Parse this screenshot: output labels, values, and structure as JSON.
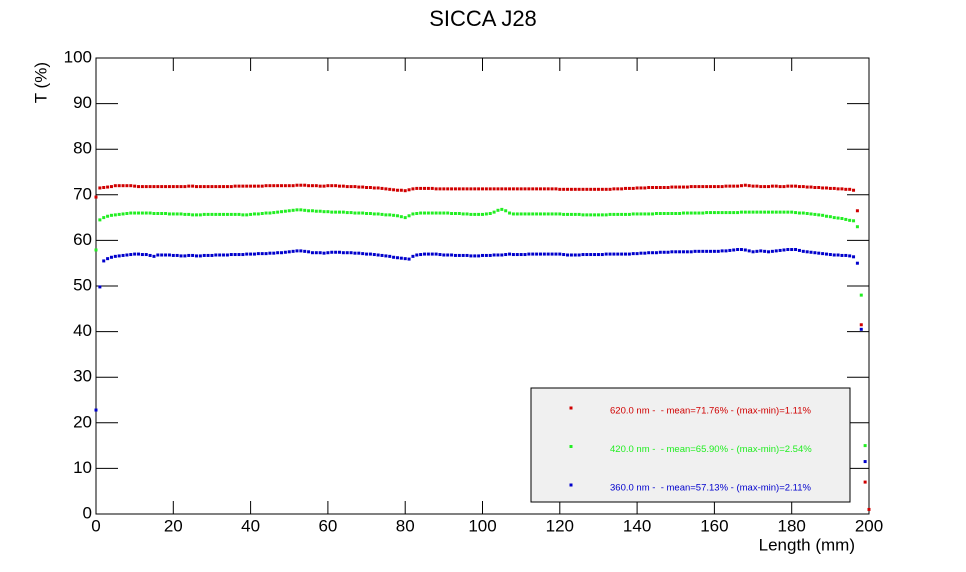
{
  "chart_data": {
    "type": "scatter",
    "title": "SICCA J28",
    "x_label": "Length (mm)",
    "y_label": "T (%)",
    "xlim": [
      0,
      200
    ],
    "xticks": [
      0,
      20,
      40,
      60,
      80,
      100,
      120,
      140,
      160,
      180,
      200
    ],
    "ylim": [
      0,
      100
    ],
    "yticks": [
      0,
      10,
      20,
      30,
      40,
      50,
      60,
      70,
      80,
      90,
      100
    ],
    "legend": "bottom-right",
    "x": [
      0,
      1,
      2,
      3,
      4,
      5,
      6,
      7,
      8,
      9,
      10,
      11,
      12,
      13,
      14,
      15,
      16,
      17,
      18,
      19,
      20,
      21,
      22,
      23,
      24,
      25,
      26,
      27,
      28,
      29,
      30,
      31,
      32,
      33,
      34,
      35,
      36,
      37,
      38,
      39,
      40,
      41,
      42,
      43,
      44,
      45,
      46,
      47,
      48,
      49,
      50,
      51,
      52,
      53,
      54,
      55,
      56,
      57,
      58,
      59,
      60,
      61,
      62,
      63,
      64,
      65,
      66,
      67,
      68,
      69,
      70,
      71,
      72,
      73,
      74,
      75,
      76,
      77,
      78,
      79,
      80,
      81,
      82,
      83,
      84,
      85,
      86,
      87,
      88,
      89,
      90,
      91,
      92,
      93,
      94,
      95,
      96,
      97,
      98,
      99,
      100,
      101,
      102,
      103,
      104,
      105,
      106,
      107,
      108,
      109,
      110,
      111,
      112,
      113,
      114,
      115,
      116,
      117,
      118,
      119,
      120,
      121,
      122,
      123,
      124,
      125,
      126,
      127,
      128,
      129,
      130,
      131,
      132,
      133,
      134,
      135,
      136,
      137,
      138,
      139,
      140,
      141,
      142,
      143,
      144,
      145,
      146,
      147,
      148,
      149,
      150,
      151,
      152,
      153,
      154,
      155,
      156,
      157,
      158,
      159,
      160,
      161,
      162,
      163,
      164,
      165,
      166,
      167,
      168,
      169,
      170,
      171,
      172,
      173,
      174,
      175,
      176,
      177,
      178,
      179,
      180,
      181,
      182,
      183,
      184,
      185,
      186,
      187,
      188,
      189,
      190,
      191,
      192,
      193,
      194,
      195,
      196,
      197,
      198,
      199,
      200
    ],
    "series": [
      {
        "name": "620.0 nm -  - mean=71.76% - (max-min)=1.11%",
        "color": "#d00000",
        "values": [
          69.5,
          71.5,
          71.6,
          71.7,
          71.8,
          72,
          72,
          72,
          72,
          72,
          71.9,
          71.8,
          71.8,
          71.8,
          71.8,
          71.8,
          71.8,
          71.8,
          71.8,
          71.8,
          71.8,
          71.8,
          71.8,
          71.8,
          71.9,
          71.9,
          71.8,
          71.8,
          71.8,
          71.8,
          71.8,
          71.8,
          71.8,
          71.8,
          71.8,
          71.8,
          71.9,
          71.9,
          71.9,
          71.9,
          71.9,
          71.9,
          71.9,
          71.9,
          72,
          72,
          72,
          72,
          72,
          72,
          72,
          72,
          72.1,
          72.1,
          72.1,
          72,
          72,
          72,
          71.9,
          71.9,
          72,
          72,
          72,
          71.9,
          71.9,
          71.8,
          71.8,
          71.8,
          71.7,
          71.7,
          71.6,
          71.6,
          71.5,
          71.5,
          71.4,
          71.3,
          71.2,
          71.1,
          71,
          71,
          70.9,
          71.1,
          71.3,
          71.4,
          71.4,
          71.4,
          71.4,
          71.4,
          71.3,
          71.3,
          71.3,
          71.3,
          71.3,
          71.3,
          71.3,
          71.3,
          71.3,
          71.3,
          71.3,
          71.3,
          71.3,
          71.3,
          71.3,
          71.3,
          71.3,
          71.3,
          71.3,
          71.3,
          71.3,
          71.3,
          71.3,
          71.3,
          71.3,
          71.3,
          71.3,
          71.3,
          71.3,
          71.3,
          71.3,
          71.3,
          71.2,
          71.2,
          71.2,
          71.2,
          71.2,
          71.2,
          71.2,
          71.2,
          71.2,
          71.2,
          71.2,
          71.2,
          71.2,
          71.2,
          71.3,
          71.3,
          71.3,
          71.4,
          71.4,
          71.4,
          71.5,
          71.5,
          71.5,
          71.6,
          71.6,
          71.6,
          71.6,
          71.6,
          71.6,
          71.7,
          71.7,
          71.7,
          71.7,
          71.7,
          71.8,
          71.8,
          71.8,
          71.8,
          71.8,
          71.8,
          71.8,
          71.8,
          71.8,
          71.9,
          71.9,
          71.9,
          71.9,
          72,
          72.1,
          72,
          71.9,
          71.9,
          71.8,
          71.8,
          71.8,
          71.9,
          71.9,
          71.8,
          71.8,
          71.9,
          71.9,
          71.9,
          71.8,
          71.8,
          71.7,
          71.7,
          71.6,
          71.6,
          71.5,
          71.5,
          71.4,
          71.4,
          71.3,
          71.3,
          71.2,
          71.2,
          71,
          66.5,
          41.5,
          7,
          1
        ]
      },
      {
        "name": "420.0 nm -  - mean=65.90% - (max-min)=2.54%",
        "color": "#22ee22",
        "values": [
          57.9,
          64.5,
          65,
          65.3,
          65.5,
          65.6,
          65.7,
          65.8,
          65.9,
          66,
          66,
          66,
          66,
          66,
          66,
          65.9,
          65.9,
          65.9,
          65.9,
          65.8,
          65.8,
          65.8,
          65.8,
          65.7,
          65.7,
          65.6,
          65.6,
          65.6,
          65.7,
          65.7,
          65.7,
          65.7,
          65.7,
          65.7,
          65.7,
          65.7,
          65.7,
          65.7,
          65.6,
          65.6,
          65.7,
          65.8,
          65.8,
          65.9,
          66,
          66,
          66.1,
          66.2,
          66.3,
          66.4,
          66.5,
          66.6,
          66.7,
          66.7,
          66.6,
          66.5,
          66.5,
          66.4,
          66.4,
          66.3,
          66.3,
          66.2,
          66.2,
          66.2,
          66.2,
          66.1,
          66.1,
          66,
          66,
          66,
          65.9,
          65.9,
          65.8,
          65.8,
          65.7,
          65.6,
          65.6,
          65.5,
          65.4,
          65.2,
          65,
          65.4,
          65.8,
          65.9,
          66,
          66,
          66,
          66,
          66,
          66,
          66,
          66,
          65.9,
          65.9,
          65.9,
          65.8,
          65.8,
          65.7,
          65.7,
          65.7,
          65.7,
          65.8,
          65.9,
          66.2,
          66.6,
          66.8,
          66.5,
          66,
          65.8,
          65.8,
          65.8,
          65.8,
          65.8,
          65.8,
          65.8,
          65.8,
          65.8,
          65.8,
          65.8,
          65.8,
          65.8,
          65.7,
          65.7,
          65.7,
          65.7,
          65.7,
          65.6,
          65.6,
          65.6,
          65.6,
          65.6,
          65.6,
          65.6,
          65.7,
          65.7,
          65.7,
          65.7,
          65.7,
          65.7,
          65.8,
          65.8,
          65.8,
          65.8,
          65.8,
          65.8,
          65.9,
          65.9,
          65.9,
          65.9,
          65.9,
          65.9,
          65.9,
          66,
          66,
          66,
          66,
          66,
          66,
          66.1,
          66.1,
          66.1,
          66.1,
          66.1,
          66.1,
          66.1,
          66.1,
          66.1,
          66.2,
          66.2,
          66.2,
          66.2,
          66.2,
          66.2,
          66.2,
          66.2,
          66.2,
          66.2,
          66.2,
          66.2,
          66.2,
          66.2,
          66.1,
          66,
          66,
          65.9,
          65.8,
          65.7,
          65.6,
          65.5,
          65.3,
          65.2,
          65,
          64.9,
          64.8,
          64.6,
          64.4,
          64.3,
          63,
          48,
          15,
          null
        ]
      },
      {
        "name": "360.0 nm -  - mean=57.13% - (max-min)=2.11%",
        "color": "#0000cc",
        "values": [
          22.8,
          49.8,
          55.5,
          56,
          56.3,
          56.5,
          56.6,
          56.7,
          56.8,
          56.9,
          57,
          57,
          56.9,
          56.9,
          56.7,
          56.5,
          56.8,
          56.8,
          56.8,
          56.8,
          56.7,
          56.7,
          56.6,
          56.6,
          56.7,
          56.7,
          56.6,
          56.6,
          56.7,
          56.7,
          56.7,
          56.8,
          56.8,
          56.8,
          56.8,
          56.9,
          56.9,
          56.9,
          56.9,
          57,
          57,
          57,
          57.1,
          57.1,
          57.1,
          57.2,
          57.2,
          57.3,
          57.3,
          57.4,
          57.5,
          57.6,
          57.7,
          57.7,
          57.6,
          57.5,
          57.3,
          57.3,
          57.3,
          57.2,
          57.3,
          57.4,
          57.4,
          57.4,
          57.3,
          57.3,
          57.3,
          57.2,
          57.2,
          57.1,
          57,
          57,
          56.9,
          56.8,
          56.7,
          56.6,
          56.5,
          56.3,
          56.2,
          56.1,
          56,
          55.9,
          56.5,
          56.8,
          56.9,
          57,
          57,
          57,
          57,
          56.9,
          56.8,
          56.8,
          56.8,
          56.7,
          56.7,
          56.7,
          56.7,
          56.6,
          56.6,
          56.6,
          56.7,
          56.7,
          56.7,
          56.8,
          56.8,
          56.8,
          56.9,
          57,
          56.9,
          56.9,
          56.9,
          56.9,
          57,
          57,
          57,
          57,
          57,
          57,
          57,
          57,
          57,
          56.9,
          56.8,
          56.8,
          56.8,
          56.8,
          56.9,
          56.9,
          56.9,
          56.9,
          56.9,
          56.9,
          57,
          57,
          57,
          57,
          57,
          57,
          57,
          57.1,
          57.1,
          57.2,
          57.2,
          57.3,
          57.3,
          57.3,
          57.4,
          57.4,
          57.4,
          57.5,
          57.5,
          57.5,
          57.5,
          57.5,
          57.5,
          57.6,
          57.6,
          57.6,
          57.6,
          57.6,
          57.6,
          57.6,
          57.7,
          57.7,
          57.8,
          57.9,
          58,
          58,
          57.9,
          57.7,
          57.5,
          57.6,
          57.7,
          57.6,
          57.5,
          57.6,
          57.7,
          57.8,
          57.9,
          58,
          58,
          58,
          57.8,
          57.6,
          57.5,
          57.4,
          57.3,
          57.2,
          57.1,
          57,
          56.9,
          56.8,
          56.8,
          56.7,
          56.7,
          56.6,
          56.4,
          55,
          40.5,
          11.5,
          null
        ]
      }
    ]
  }
}
